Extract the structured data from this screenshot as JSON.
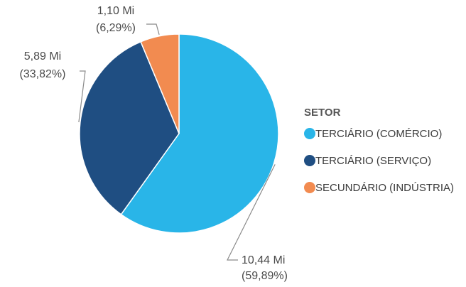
{
  "chart_data": {
    "type": "pie",
    "title": "",
    "legend_title": "SETOR",
    "legend_position": "right",
    "slices": [
      {
        "name": "TERCIÁRIO (COMÉRCIO)",
        "value_label": "10,44 Mi",
        "percent_label": "(59,89%)",
        "value": 10.44,
        "percent": 59.89,
        "color": "#29b5e8"
      },
      {
        "name": "TERCIÁRIO (SERVIÇO)",
        "value_label": "5,89 Mi",
        "percent_label": "(33,82%)",
        "value": 5.89,
        "percent": 33.82,
        "color": "#1f4e82"
      },
      {
        "name": "SECUNDÁRIO (INDÚSTRIA)",
        "value_label": "1,10 Mi",
        "percent_label": "(6,29%)",
        "value": 1.1,
        "percent": 6.29,
        "color": "#f28b50"
      }
    ]
  }
}
